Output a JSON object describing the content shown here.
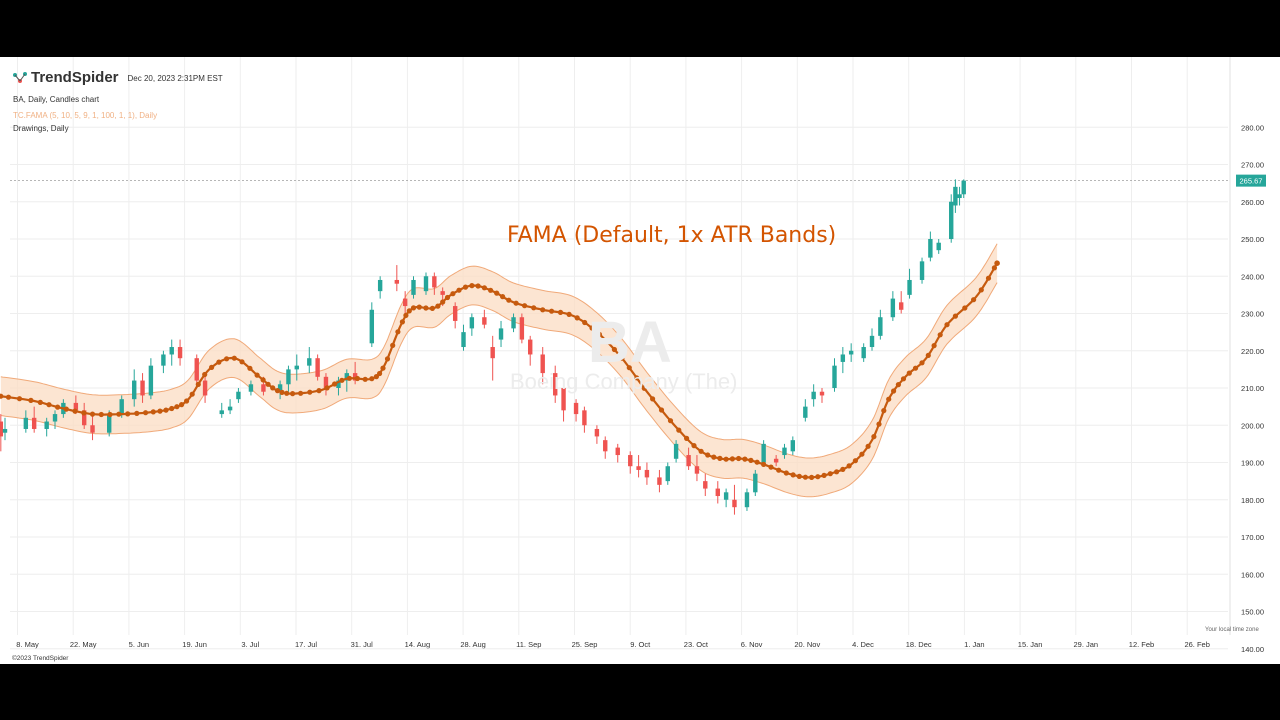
{
  "header": {
    "brand": "TrendSpider",
    "datetime": "Dec 20, 2023 2:31PM EST",
    "chart_label": "BA, Daily, Candles chart",
    "indicator_label": "TC.FAMA (5, 10, 5, 9, 1, 100, 1, 1), Daily",
    "drawings_label": "Drawings, Daily"
  },
  "annotation": "FAMA (Default, 1x ATR Bands)",
  "watermark": {
    "symbol": "BA",
    "name": "Boeing Company (The)"
  },
  "footer": "©2023 TrendSpider",
  "timezone_note": "Your local time zone",
  "colors": {
    "up": "#26a69a",
    "down": "#ef5350",
    "fama_line": "#c65a0e",
    "band_fill": "#fbdcc3",
    "band_edge": "#f0a979",
    "price_label_bg": "#26a69a",
    "annotation": "#d35400"
  },
  "chart_data": {
    "type": "candlestick",
    "symbol": "BA",
    "timeframe": "Daily",
    "y_axis": {
      "min": 137,
      "max": 287,
      "ticks": [
        "140.00",
        "150.00",
        "160.00",
        "170.00",
        "180.00",
        "190.00",
        "200.00",
        "210.00",
        "220.00",
        "230.00",
        "240.00",
        "250.00",
        "260.00",
        "270.00",
        "280.00"
      ]
    },
    "x_axis": {
      "labels": [
        "8. May",
        "22. May",
        "5. Jun",
        "19. Jun",
        "3. Jul",
        "17. Jul",
        "31. Jul",
        "14. Aug",
        "28. Aug",
        "11. Sep",
        "25. Sep",
        "9. Oct",
        "23. Oct",
        "6. Nov",
        "20. Nov",
        "4. Dec",
        "18. Dec",
        "1. Jan",
        "15. Jan",
        "29. Jan",
        "12. Feb",
        "26. Feb"
      ]
    },
    "last_price": "265.67",
    "series": [
      {
        "name": "TC.FAMA (5, 10, 5, 9, 1, 100, 1, 1), Daily",
        "anchors": [
          [
            "2023-05-04",
            207.8
          ],
          [
            "2023-05-12",
            206.5
          ],
          [
            "2023-05-19",
            204.5
          ],
          [
            "2023-05-26",
            203.0
          ],
          [
            "2023-06-02",
            203.0
          ],
          [
            "2023-06-09",
            203.5
          ],
          [
            "2023-06-14",
            204.5
          ],
          [
            "2023-06-18",
            207.0
          ],
          [
            "2023-06-23",
            215.0
          ],
          [
            "2023-06-29",
            218.0
          ],
          [
            "2023-07-05",
            213.0
          ],
          [
            "2023-07-09",
            209.5
          ],
          [
            "2023-07-13",
            208.5
          ],
          [
            "2023-07-20",
            209.5
          ],
          [
            "2023-07-26",
            212.5
          ],
          [
            "2023-08-01",
            212.5
          ],
          [
            "2023-08-04",
            216.0
          ],
          [
            "2023-08-08",
            227.0
          ],
          [
            "2023-08-11",
            231.5
          ],
          [
            "2023-08-16",
            231.5
          ],
          [
            "2023-08-20",
            235.0
          ],
          [
            "2023-08-25",
            237.5
          ],
          [
            "2023-08-30",
            236.0
          ],
          [
            "2023-09-04",
            233.0
          ],
          [
            "2023-09-11",
            231.0
          ],
          [
            "2023-09-18",
            229.5
          ],
          [
            "2023-09-24",
            225.0
          ],
          [
            "2023-09-30",
            218.0
          ],
          [
            "2023-10-06",
            209.0
          ],
          [
            "2023-10-13",
            199.5
          ],
          [
            "2023-10-19",
            193.0
          ],
          [
            "2023-10-24",
            191.0
          ],
          [
            "2023-10-29",
            191.0
          ],
          [
            "2023-11-03",
            189.5
          ],
          [
            "2023-11-09",
            187.0
          ],
          [
            "2023-11-14",
            186.0
          ],
          [
            "2023-11-19",
            187.0
          ],
          [
            "2023-11-24",
            189.5
          ],
          [
            "2023-11-29",
            196.0
          ],
          [
            "2023-12-03",
            207.0
          ],
          [
            "2023-12-07",
            213.0
          ],
          [
            "2023-12-12",
            218.0
          ],
          [
            "2023-12-17",
            227.0
          ],
          [
            "2023-12-24",
            234.5
          ],
          [
            "2023-12-29",
            243.5
          ]
        ],
        "atr_band_width": 5.2
      }
    ],
    "candles": [
      [
        "2023-05-04",
        201,
        203,
        193,
        197
      ],
      [
        "2023-05-05",
        198,
        202,
        196,
        199
      ],
      [
        "2023-05-10",
        199,
        204,
        198,
        202
      ],
      [
        "2023-05-12",
        202,
        205,
        198,
        199
      ],
      [
        "2023-05-15",
        199,
        202,
        197,
        201
      ],
      [
        "2023-05-17",
        201,
        204,
        199,
        203
      ],
      [
        "2023-05-19",
        203,
        207,
        202,
        206
      ],
      [
        "2023-05-22",
        206,
        208,
        203,
        204
      ],
      [
        "2023-05-24",
        204,
        206,
        199,
        200
      ],
      [
        "2023-05-26",
        200,
        203,
        196,
        198
      ],
      [
        "2023-05-30",
        198,
        204,
        197,
        203
      ],
      [
        "2023-06-02",
        203,
        208,
        202,
        207
      ],
      [
        "2023-06-05",
        207,
        215,
        205,
        212
      ],
      [
        "2023-06-07",
        212,
        214,
        206,
        208
      ],
      [
        "2023-06-09",
        208,
        218,
        207,
        216
      ],
      [
        "2023-06-12",
        216,
        220,
        214,
        219
      ],
      [
        "2023-06-14",
        219,
        223,
        216,
        221
      ],
      [
        "2023-06-16",
        221,
        223,
        216,
        218
      ],
      [
        "2023-06-20",
        218,
        219,
        210,
        212
      ],
      [
        "2023-06-22",
        212,
        213,
        206,
        208
      ],
      [
        "2023-06-26",
        203,
        206,
        202,
        204
      ],
      [
        "2023-06-28",
        204,
        207,
        203,
        205
      ],
      [
        "2023-06-30",
        207,
        210,
        206,
        209
      ],
      [
        "2023-07-03",
        209,
        212,
        208,
        211
      ],
      [
        "2023-07-06",
        211,
        213,
        208,
        209
      ],
      [
        "2023-07-10",
        209,
        212,
        207,
        211
      ],
      [
        "2023-07-12",
        211,
        216,
        209,
        215
      ],
      [
        "2023-07-14",
        215,
        219,
        212,
        216
      ],
      [
        "2023-07-17",
        216,
        221,
        214,
        218
      ],
      [
        "2023-07-19",
        218,
        219,
        212,
        213
      ],
      [
        "2023-07-21",
        213,
        214,
        208,
        210
      ],
      [
        "2023-07-24",
        210,
        213,
        208,
        212
      ],
      [
        "2023-07-26",
        212,
        215,
        209,
        214
      ],
      [
        "2023-07-28",
        214,
        217,
        211,
        212
      ],
      [
        "2023-08-01",
        222,
        233,
        221,
        231
      ],
      [
        "2023-08-03",
        236,
        240,
        234,
        239
      ],
      [
        "2023-08-07",
        239,
        243,
        236,
        238
      ],
      [
        "2023-08-09",
        234,
        236,
        230,
        232
      ],
      [
        "2023-08-11",
        235,
        240,
        234,
        239
      ],
      [
        "2023-08-14",
        236,
        241,
        235,
        240
      ],
      [
        "2023-08-16",
        240,
        241,
        235,
        237
      ],
      [
        "2023-08-18",
        236,
        237,
        232,
        235
      ],
      [
        "2023-08-21",
        232,
        233,
        226,
        228
      ],
      [
        "2023-08-23",
        221,
        227,
        220,
        225
      ],
      [
        "2023-08-25",
        226,
        230,
        224,
        229
      ],
      [
        "2023-08-28",
        229,
        231,
        226,
        227
      ],
      [
        "2023-08-30",
        221,
        224,
        212,
        218
      ],
      [
        "2023-09-01",
        223,
        228,
        221,
        226
      ],
      [
        "2023-09-04",
        226,
        230,
        225,
        229
      ],
      [
        "2023-09-06",
        229,
        230,
        222,
        223
      ],
      [
        "2023-09-08",
        223,
        224,
        216,
        219
      ],
      [
        "2023-09-11",
        219,
        221,
        211,
        214
      ],
      [
        "2023-09-14",
        214,
        216,
        206,
        208
      ],
      [
        "2023-09-16",
        210,
        211,
        201,
        204
      ],
      [
        "2023-09-19",
        206,
        207,
        201,
        203
      ],
      [
        "2023-09-21",
        204,
        205,
        198,
        200
      ],
      [
        "2023-09-24",
        199,
        200,
        195,
        197
      ],
      [
        "2023-09-26",
        196,
        197,
        191,
        193
      ],
      [
        "2023-09-29",
        194,
        195,
        190,
        192
      ],
      [
        "2023-10-02",
        192,
        193,
        187,
        189
      ],
      [
        "2023-10-04",
        189,
        192,
        186,
        188
      ],
      [
        "2023-10-06",
        188,
        190,
        184,
        186
      ],
      [
        "2023-10-09",
        186,
        188,
        182,
        184
      ],
      [
        "2023-10-11",
        185,
        190,
        184,
        189
      ],
      [
        "2023-10-13",
        191,
        196,
        190,
        195
      ],
      [
        "2023-10-16",
        192,
        194,
        188,
        189
      ],
      [
        "2023-10-18",
        189,
        192,
        185,
        187
      ],
      [
        "2023-10-20",
        185,
        187,
        181,
        183
      ],
      [
        "2023-10-23",
        183,
        185,
        179,
        181
      ],
      [
        "2023-10-25",
        180,
        183,
        178,
        182
      ],
      [
        "2023-10-27",
        180,
        184,
        176,
        178
      ],
      [
        "2023-10-30",
        178,
        183,
        177,
        182
      ],
      [
        "2023-11-01",
        182,
        188,
        181,
        187
      ],
      [
        "2023-11-03",
        190,
        196,
        189,
        195
      ],
      [
        "2023-11-06",
        191,
        192,
        189,
        190
      ],
      [
        "2023-11-08",
        192,
        195,
        191,
        194
      ],
      [
        "2023-11-10",
        193,
        197,
        192,
        196
      ],
      [
        "2023-11-13",
        202,
        207,
        201,
        205
      ],
      [
        "2023-11-15",
        207,
        211,
        205,
        209
      ],
      [
        "2023-11-17",
        209,
        210,
        206,
        208
      ],
      [
        "2023-11-20",
        210,
        218,
        209,
        216
      ],
      [
        "2023-11-22",
        217,
        221,
        214,
        219
      ],
      [
        "2023-11-24",
        219,
        222,
        217,
        220
      ],
      [
        "2023-11-27",
        218,
        222,
        217,
        221
      ],
      [
        "2023-11-29",
        221,
        226,
        220,
        224
      ],
      [
        "2023-12-01",
        224,
        231,
        223,
        229
      ],
      [
        "2023-12-04",
        229,
        236,
        228,
        234
      ],
      [
        "2023-12-06",
        233,
        236,
        230,
        231
      ],
      [
        "2023-12-08",
        235,
        242,
        234,
        239
      ],
      [
        "2023-12-11",
        239,
        245,
        238,
        244
      ],
      [
        "2023-12-13",
        245,
        252,
        244,
        250
      ],
      [
        "2023-12-15",
        247,
        250,
        246,
        249
      ],
      [
        "2023-12-18",
        250,
        262,
        249,
        260
      ],
      [
        "2023-12-19",
        259,
        266,
        257,
        264
      ],
      [
        "2023-12-20",
        261,
        264,
        259,
        262
      ],
      [
        "2023-12-21",
        262,
        266,
        261,
        265.67
      ]
    ]
  }
}
